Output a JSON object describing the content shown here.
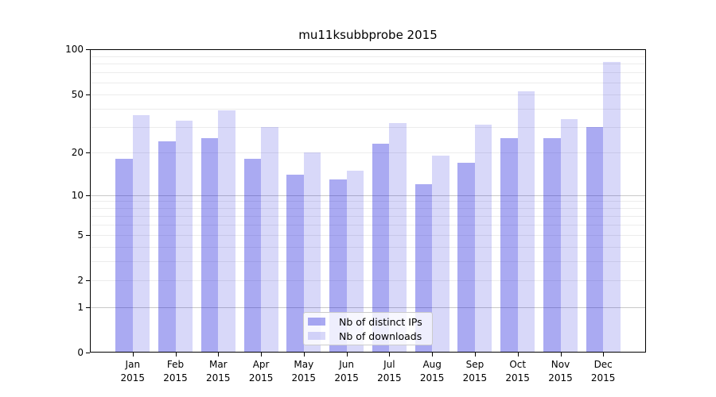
{
  "title": "mu11ksubbprobe 2015",
  "colors": {
    "background": "#ffffff",
    "bar_distinct_ips": "rgba(25,25,220,0.37)",
    "bar_downloads": "rgba(25,25,220,0.17)",
    "grid_major": "#c8c8c8",
    "grid_minor": "#ececec",
    "spine": "#000000",
    "legend_border": "#cccccc"
  },
  "legend": {
    "position": "lower center",
    "items": [
      {
        "label": "Nb of distinct IPs"
      },
      {
        "label": "Nb of downloads"
      }
    ]
  },
  "axes": {
    "ytick_labels": [
      "100",
      "50",
      "20",
      "10",
      "5",
      "2",
      "1",
      "0"
    ],
    "xtick_year_line": "2015"
  },
  "chart_data": {
    "type": "bar",
    "title": "mu11ksubbprobe 2015",
    "categories": [
      "Jan",
      "Feb",
      "Mar",
      "Apr",
      "May",
      "Jun",
      "Jul",
      "Aug",
      "Sep",
      "Oct",
      "Nov",
      "Dec"
    ],
    "x_year": "2015",
    "series": [
      {
        "name": "Nb of distinct IPs",
        "color": "rgba(25,25,220,0.37)",
        "values": [
          18,
          24,
          25,
          18,
          14,
          13,
          23,
          12,
          17,
          25,
          25,
          30
        ]
      },
      {
        "name": "Nb of downloads",
        "color": "rgba(25,25,220,0.17)",
        "values": [
          36,
          33,
          39,
          30,
          20,
          15,
          32,
          19,
          31,
          52,
          34,
          82
        ]
      }
    ],
    "yscale": "log1p",
    "ylim": [
      0,
      100
    ],
    "yticks": [
      100,
      50,
      20,
      10,
      5,
      2,
      1,
      0
    ],
    "grid_major": [
      1,
      10
    ],
    "grid_minor": [
      2,
      3,
      4,
      5,
      6,
      7,
      8,
      9,
      20,
      30,
      40,
      50,
      60,
      70,
      80,
      90
    ],
    "grid": "horizontal",
    "legend_position": "lower center"
  }
}
